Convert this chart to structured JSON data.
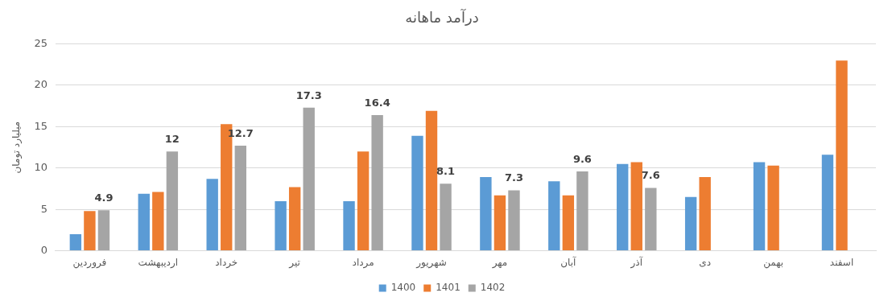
{
  "chart_data": {
    "type": "bar",
    "title": "درآمد ماهانه",
    "ylabel": "میلیارد تومان",
    "categories": [
      "فروردین",
      "اردیبهشت",
      "خرداد",
      "تیر",
      "مرداد",
      "شهریور",
      "مهر",
      "آبان",
      "آذر",
      "دی",
      "بهمن",
      "اسفند"
    ],
    "series": [
      {
        "name": "1400",
        "color": "#5b9bd5",
        "values": [
          2.0,
          6.9,
          8.7,
          6.0,
          6.0,
          13.9,
          8.9,
          8.4,
          10.5,
          6.5,
          10.7,
          11.6
        ]
      },
      {
        "name": "1401",
        "color": "#ed7d31",
        "values": [
          4.8,
          7.1,
          15.3,
          7.7,
          12.0,
          16.9,
          6.7,
          6.7,
          10.7,
          8.9,
          10.3,
          23.0
        ]
      },
      {
        "name": "1402",
        "color": "#a5a5a5",
        "values": [
          4.9,
          12,
          12.7,
          17.3,
          16.4,
          8.1,
          7.3,
          9.6,
          7.6,
          null,
          null,
          null
        ],
        "value_labels": [
          "4.9",
          "12",
          "12.7",
          "17.3",
          "16.4",
          "8.1",
          "7.3",
          "9.6",
          "7.6",
          null,
          null,
          null
        ]
      }
    ],
    "ylim": [
      0,
      25
    ],
    "yticks": [
      0,
      5,
      10,
      15,
      20,
      25
    ],
    "grid": "y",
    "legend": "bottom"
  }
}
